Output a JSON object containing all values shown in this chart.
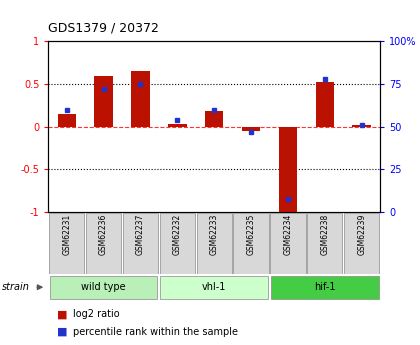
{
  "title": "GDS1379 / 20372",
  "samples": [
    "GSM62231",
    "GSM62236",
    "GSM62237",
    "GSM62232",
    "GSM62233",
    "GSM62235",
    "GSM62234",
    "GSM62238",
    "GSM62239"
  ],
  "log2_ratio": [
    0.15,
    0.6,
    0.65,
    0.03,
    0.18,
    -0.05,
    -1.02,
    0.52,
    0.02
  ],
  "percentile_rank": [
    60,
    72,
    75,
    54,
    60,
    47,
    8,
    78,
    51
  ],
  "groups": [
    {
      "label": "wild type",
      "start": 0,
      "end": 3,
      "color": "#b8f0b8"
    },
    {
      "label": "vhl-1",
      "start": 3,
      "end": 6,
      "color": "#ccffcc"
    },
    {
      "label": "hif-1",
      "start": 6,
      "end": 9,
      "color": "#44cc44"
    }
  ],
  "ylim_left": [
    -1.0,
    1.0
  ],
  "ylim_right": [
    0,
    100
  ],
  "yticks_left": [
    -1.0,
    -0.5,
    0.0,
    0.5,
    1.0
  ],
  "yticks_right": [
    0,
    25,
    50,
    75,
    100
  ],
  "hline_dotted": [
    0.5,
    -0.5
  ],
  "hline_dashed": [
    0.0
  ],
  "bar_color": "#bb1100",
  "dot_color": "#2233cc",
  "sample_bg": "#d8d8d8",
  "plot_bg": "#ffffff",
  "strain_label": "strain",
  "legend_items": [
    {
      "color": "#bb1100",
      "label": "log2 ratio"
    },
    {
      "color": "#2233cc",
      "label": "percentile rank within the sample"
    }
  ],
  "bar_width": 0.5
}
